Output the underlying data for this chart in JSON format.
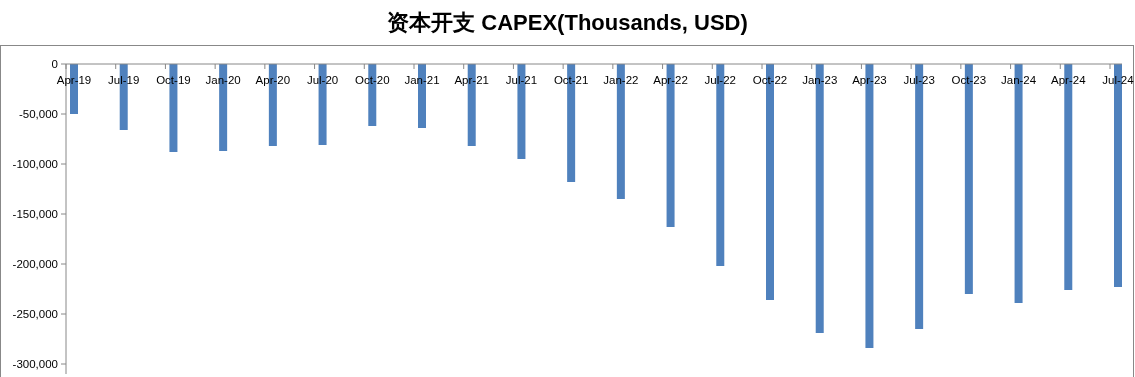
{
  "chart_data": {
    "type": "bar",
    "title": "资本开支 CAPEX(Thousands, USD)",
    "categories": [
      "Apr-19",
      "Jul-19",
      "Oct-19",
      "Jan-20",
      "Apr-20",
      "Jul-20",
      "Oct-20",
      "Jan-21",
      "Apr-21",
      "Jul-21",
      "Oct-21",
      "Jan-22",
      "Apr-22",
      "Jul-22",
      "Oct-22",
      "Jan-23",
      "Apr-23",
      "Jul-23",
      "Oct-23",
      "Jan-24",
      "Apr-24",
      "Jul-24"
    ],
    "values": [
      -50000,
      -66000,
      -88000,
      -87000,
      -82000,
      -81000,
      -62000,
      -64000,
      -82000,
      -95000,
      -118000,
      -135000,
      -163000,
      -202000,
      -236000,
      -269000,
      -284000,
      -265000,
      -230000,
      -239000,
      -226000,
      -223000
    ],
    "color": "#4f81bd",
    "ylim": [
      -310000,
      0
    ],
    "yticks": [
      {
        "value": 0,
        "label": "0"
      },
      {
        "value": -50000,
        "label": "-50,000"
      },
      {
        "value": -100000,
        "label": "-100,000"
      },
      {
        "value": -150000,
        "label": "-150,000"
      },
      {
        "value": -200000,
        "label": "-200,000"
      },
      {
        "value": -250000,
        "label": "-250,000"
      },
      {
        "value": -300000,
        "label": "-300,000"
      }
    ],
    "grid": false
  }
}
